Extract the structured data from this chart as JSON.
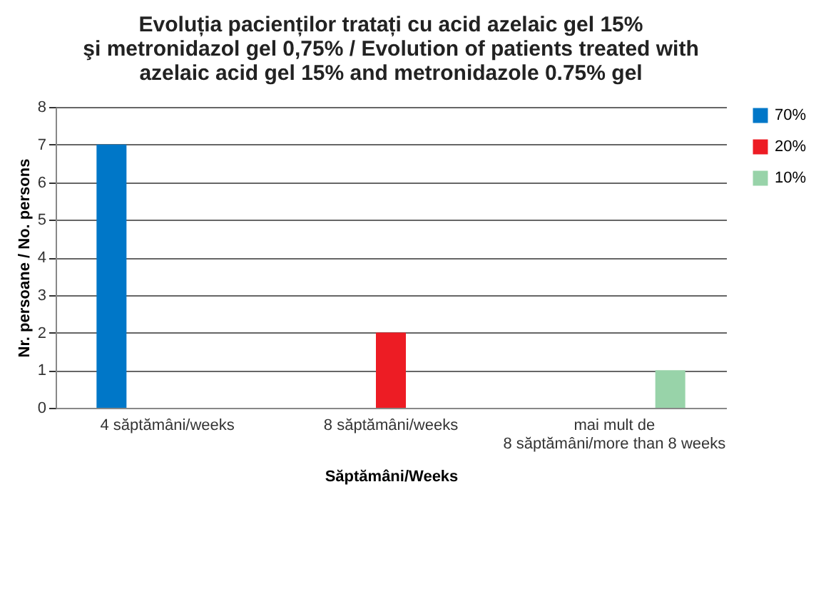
{
  "chart_data": {
    "type": "bar",
    "title": "Evoluția pacienților tratați cu acid azelaic gel 15%\nşi metronidazol gel 0,75% / Evolution of patients treated with\nazelaic acid gel 15% and metronidazole 0.75% gel",
    "xlabel": "Săptămâni/Weeks",
    "ylabel": "Nr. persoane / No. persons",
    "categories": [
      "4 săptămâni/weeks",
      "8 săptămâni/weeks",
      "mai mult de\n8 săptămâni/more than 8 weeks"
    ],
    "series": [
      {
        "name": "70%",
        "color": "#0077c8",
        "values": [
          7,
          null,
          null
        ]
      },
      {
        "name": "20%",
        "color": "#ed1c24",
        "values": [
          null,
          2,
          null
        ]
      },
      {
        "name": "10%",
        "color": "#98d3a9",
        "values": [
          null,
          null,
          1
        ]
      }
    ],
    "ylim": [
      0,
      8
    ],
    "yticks": [
      0,
      1,
      2,
      3,
      4,
      5,
      6,
      7,
      8
    ],
    "grid": "y",
    "legend": "right"
  }
}
